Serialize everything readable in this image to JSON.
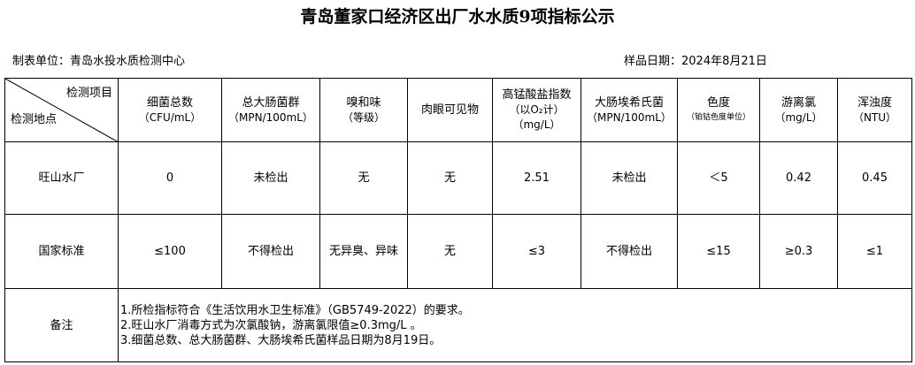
{
  "title": "青岛董家口经济区出厂水水质9项指标公示",
  "unit": "制表单位：青岛水投水质检测中心",
  "date": "样品日期：2024年8月21日",
  "header": {
    "corner_top": "检测项目",
    "corner_bottom": "检测地点",
    "columns": [
      {
        "name": "细菌总数",
        "unit": "（CFU/mL）"
      },
      {
        "name": "总大肠菌群",
        "unit": "（MPN/100mL）"
      },
      {
        "name": "嗅和味",
        "unit": "（等级）"
      },
      {
        "name": "肉眼可见物",
        "unit": ""
      },
      {
        "name": "高锰酸盐指数",
        "unit": "（以O₂计）",
        "unit2": "（mg/L）"
      },
      {
        "name": "大肠埃希氏菌",
        "unit": "（MPN/100mL）"
      },
      {
        "name": "色度",
        "unit": "（铂钴色度单位）"
      },
      {
        "name": "游离氯",
        "unit": "（mg/L）"
      },
      {
        "name": "浑浊度",
        "unit": "（NTU）"
      }
    ]
  },
  "rows": [
    {
      "site": "旺山水厂",
      "values": [
        "0",
        "未检出",
        "无",
        "无",
        "2.51",
        "未检出",
        "＜5",
        "0.42",
        "0.45"
      ]
    },
    {
      "site": "国家标准",
      "values": [
        "≤100",
        "不得检出",
        "无异臭、异味",
        "无",
        "≤3",
        "不得检出",
        "≤15",
        "≥0.3",
        "≤1"
      ]
    }
  ],
  "notes": {
    "label": "备注",
    "lines": [
      "1.所检指标符合《生活饮用水卫生标准》（GB5749-2022）的要求。",
      "2.旺山水厂消毒方式为次氯酸钠，游离氯限值≥0.3mg/L 。",
      "3.细菌总数、总大肠菌群、大肠埃希氏菌样品日期为8月19日。"
    ]
  }
}
